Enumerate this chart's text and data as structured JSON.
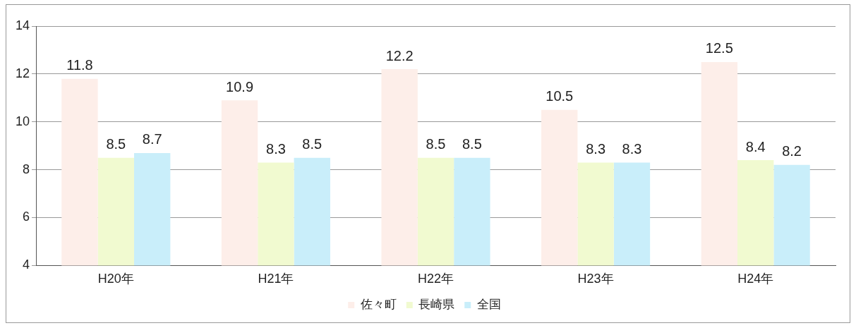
{
  "chart_data": {
    "type": "bar",
    "categories": [
      "H20年",
      "H21年",
      "H22年",
      "H23年",
      "H24年"
    ],
    "series": [
      {
        "name": "佐々町",
        "color": "#fdeee9",
        "values": [
          11.8,
          10.9,
          12.2,
          10.5,
          12.5
        ]
      },
      {
        "name": "長崎県",
        "color": "#f1fad0",
        "values": [
          8.5,
          8.3,
          8.5,
          8.3,
          8.4
        ]
      },
      {
        "name": "全国",
        "color": "#c9eefa",
        "values": [
          8.7,
          8.5,
          8.5,
          8.3,
          8.2
        ]
      }
    ],
    "ylim": [
      4,
      14
    ],
    "yticks": [
      4,
      6,
      8,
      10,
      12,
      14
    ],
    "grid": "y",
    "legend": "bottom",
    "data_labels": true
  }
}
